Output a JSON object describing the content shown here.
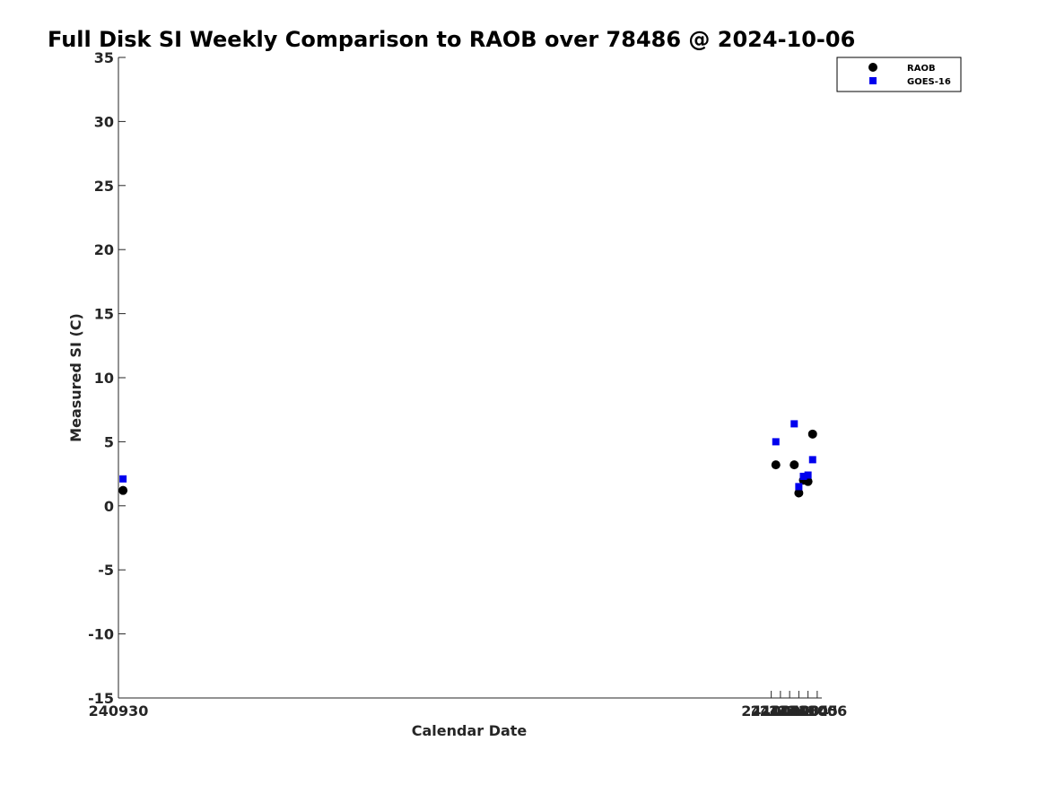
{
  "chart_data": {
    "type": "scatter",
    "title": "Full Disk SI Weekly Comparison to RAOB over 78486 @ 2024-10-06",
    "xlabel": "Calendar Date",
    "ylabel": "Measured SI (C)",
    "xlim": [
      240930,
      241006.5
    ],
    "ylim": [
      -15,
      35
    ],
    "x_ticks": [
      {
        "value": 240930,
        "label": "240930"
      },
      {
        "value": 241001,
        "label": "241001"
      },
      {
        "value": 241002,
        "label": "241002"
      },
      {
        "value": 241003,
        "label": "241003"
      },
      {
        "value": 241004,
        "label": "241004"
      },
      {
        "value": 241005,
        "label": "241005"
      },
      {
        "value": 241006,
        "label": "241006"
      }
    ],
    "y_ticks": [
      -15,
      -10,
      -5,
      0,
      5,
      10,
      15,
      20,
      25,
      30,
      35
    ],
    "grid": false,
    "legend_position": "top-right",
    "series": [
      {
        "name": "RAOB",
        "marker": "circle",
        "color": "#000000",
        "points": [
          {
            "x": 240930.5,
            "y": 1.2
          },
          {
            "x": 241001.5,
            "y": 3.2
          },
          {
            "x": 241003.5,
            "y": 3.2
          },
          {
            "x": 241004.0,
            "y": 1.0
          },
          {
            "x": 241004.5,
            "y": 2.0
          },
          {
            "x": 241005.0,
            "y": 1.9
          },
          {
            "x": 241005.5,
            "y": 5.6
          }
        ]
      },
      {
        "name": "GOES-16",
        "marker": "square",
        "color": "#0000ee",
        "points": [
          {
            "x": 240930.5,
            "y": 2.1
          },
          {
            "x": 241001.5,
            "y": 5.0
          },
          {
            "x": 241003.5,
            "y": 6.4
          },
          {
            "x": 241004.0,
            "y": 1.5
          },
          {
            "x": 241004.5,
            "y": 2.3
          },
          {
            "x": 241005.0,
            "y": 2.4
          },
          {
            "x": 241005.5,
            "y": 3.6
          }
        ]
      }
    ]
  }
}
